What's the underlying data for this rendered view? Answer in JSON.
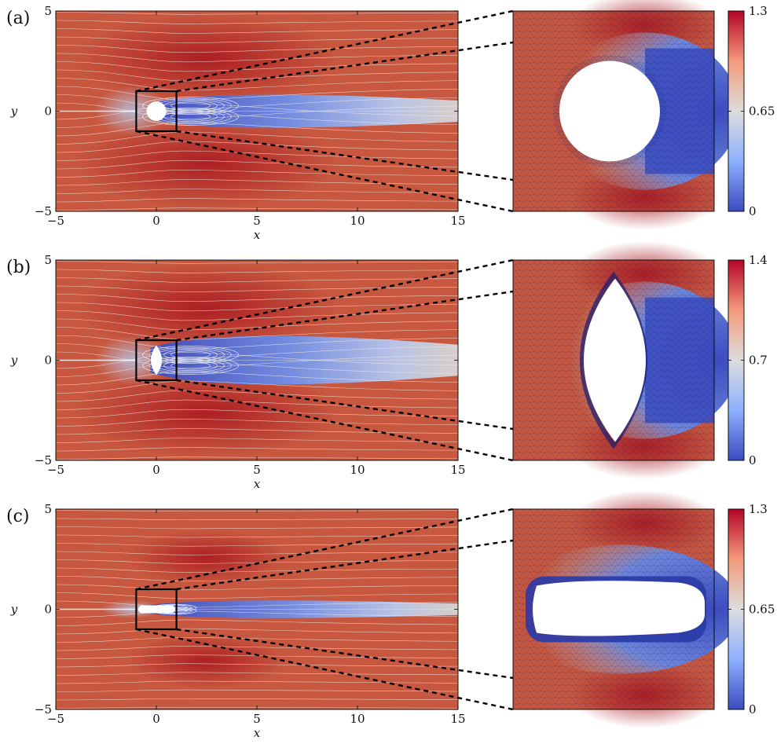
{
  "panels": [
    {
      "label": "(a)",
      "shape": "circle",
      "xlabel": "x",
      "ylabel": "y",
      "x_ticks": [
        "−5",
        "0",
        "5",
        "10",
        "15"
      ],
      "y_ticks": [
        "5",
        "0",
        "−5"
      ],
      "colorbar": {
        "min": 0,
        "max": 1.3,
        "ticks": [
          "1.3",
          "0.65",
          "0"
        ]
      }
    },
    {
      "label": "(b)",
      "shape": "lens",
      "xlabel": "x",
      "ylabel": "y",
      "x_ticks": [
        "−5",
        "0",
        "5",
        "10",
        "15"
      ],
      "y_ticks": [
        "5",
        "0",
        "−5"
      ],
      "colorbar": {
        "min": 0,
        "max": 1.4,
        "ticks": [
          "1.4",
          "0.7",
          "0"
        ]
      }
    },
    {
      "label": "(c)",
      "shape": "elongated",
      "xlabel": "x",
      "ylabel": "y",
      "x_ticks": [
        "−5",
        "0",
        "5",
        "10",
        "15"
      ],
      "y_ticks": [
        "5",
        "0",
        "−5"
      ],
      "colorbar": {
        "min": 0,
        "max": 1.3,
        "ticks": [
          "1.3",
          "0.65",
          "0"
        ]
      }
    }
  ],
  "colors": {
    "flow_red": "#c7583f",
    "flow_dark_red": "#b40426",
    "wake_blue": "#3b4cc0",
    "neutral": "#dddddd",
    "mesh_line": "#22227a"
  }
}
